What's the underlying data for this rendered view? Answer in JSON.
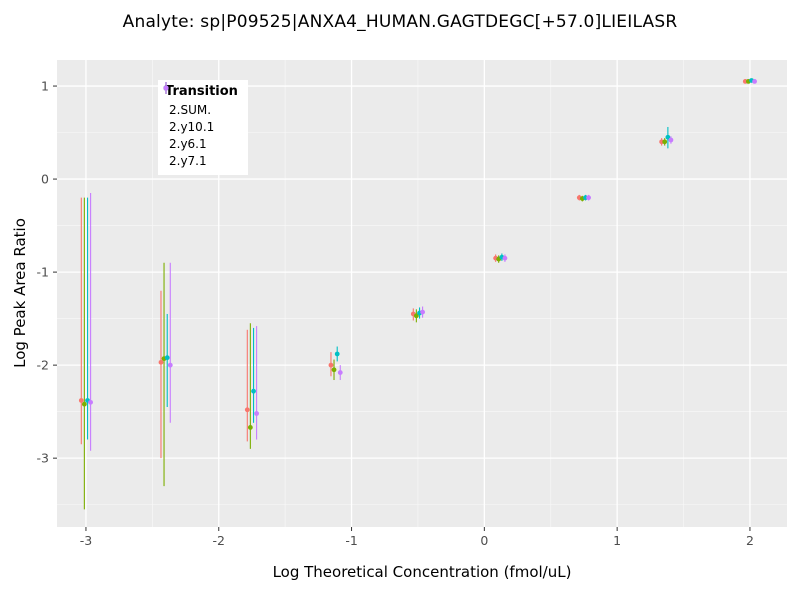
{
  "chart_data": {
    "type": "scatter",
    "title": "Analyte: sp|P09525|ANXA4_HUMAN.GAGTDEGC[+57.0]LIEILASR",
    "xlabel": "Log Theoretical Concentration (fmol/uL)",
    "ylabel": "Log Peak Area Ratio",
    "xlim": [
      -3.218,
      2.279
    ],
    "ylim": [
      -3.74,
      1.28
    ],
    "x_ticks": [
      -3,
      -2,
      -1,
      0,
      1,
      2
    ],
    "y_ticks": [
      -3,
      -2,
      -1,
      0,
      1
    ],
    "x_minor": [
      -2.5,
      -1.5,
      -0.5,
      0.5,
      1.5
    ],
    "y_minor": [
      -3.5,
      -2.5,
      -1.5,
      -0.5,
      0.5
    ],
    "grid": true,
    "panel_bg": "#EBEBEB",
    "grid_major_color": "#FFFFFF",
    "grid_minor_color": "#F7F7F7",
    "tick_label_color": "#4d4d4d",
    "legend_title": "Transition",
    "legend_position": "top-left-inside",
    "x": [
      -3,
      -2.4,
      -1.75,
      -1.12,
      -0.5,
      0.12,
      0.75,
      1.37,
      2
    ],
    "series": [
      {
        "name": "2.SUM.",
        "color": "#F8766D",
        "offset": -0.035,
        "y": [
          -2.38,
          -1.97,
          -2.48,
          -2.0,
          -1.45,
          -0.85,
          -0.2,
          0.4,
          1.05
        ],
        "lo": [
          -2.85,
          -3.0,
          -2.82,
          -2.12,
          -1.52,
          -0.89,
          -0.23,
          0.36,
          1.03
        ],
        "hi": [
          -0.2,
          -1.2,
          -1.62,
          -1.86,
          -1.39,
          -0.81,
          -0.17,
          0.44,
          1.07
        ]
      },
      {
        "name": "2.y10.1",
        "color": "#7CAE00",
        "offset": -0.012,
        "y": [
          -2.42,
          -1.93,
          -2.67,
          -2.05,
          -1.47,
          -0.86,
          -0.21,
          0.4,
          1.05
        ],
        "lo": [
          -3.55,
          -3.3,
          -2.9,
          -2.16,
          -1.54,
          -0.9,
          -0.24,
          0.36,
          1.03
        ],
        "hi": [
          -0.2,
          -0.9,
          -1.55,
          -1.94,
          -1.4,
          -0.82,
          -0.18,
          0.44,
          1.07
        ]
      },
      {
        "name": "2.y6.1",
        "color": "#00BFC4",
        "offset": 0.012,
        "y": [
          -2.38,
          -1.92,
          -2.28,
          -1.88,
          -1.44,
          -0.84,
          -0.2,
          0.45,
          1.06
        ],
        "lo": [
          -2.8,
          -2.45,
          -2.62,
          -1.96,
          -1.5,
          -0.88,
          -0.23,
          0.33,
          1.04
        ],
        "hi": [
          -0.2,
          -1.45,
          -1.6,
          -1.8,
          -1.38,
          -0.8,
          -0.17,
          0.56,
          1.08
        ]
      },
      {
        "name": "2.y7.1",
        "color": "#C77CFF",
        "offset": 0.035,
        "y": [
          -2.4,
          -2.0,
          -2.52,
          -2.08,
          -1.43,
          -0.85,
          -0.2,
          0.42,
          1.05
        ],
        "lo": [
          -2.92,
          -2.62,
          -2.8,
          -2.16,
          -1.49,
          -0.89,
          -0.23,
          0.38,
          1.03
        ],
        "hi": [
          -0.15,
          -0.9,
          -1.58,
          -2.0,
          -1.37,
          -0.81,
          -0.17,
          0.46,
          1.07
        ]
      }
    ]
  }
}
